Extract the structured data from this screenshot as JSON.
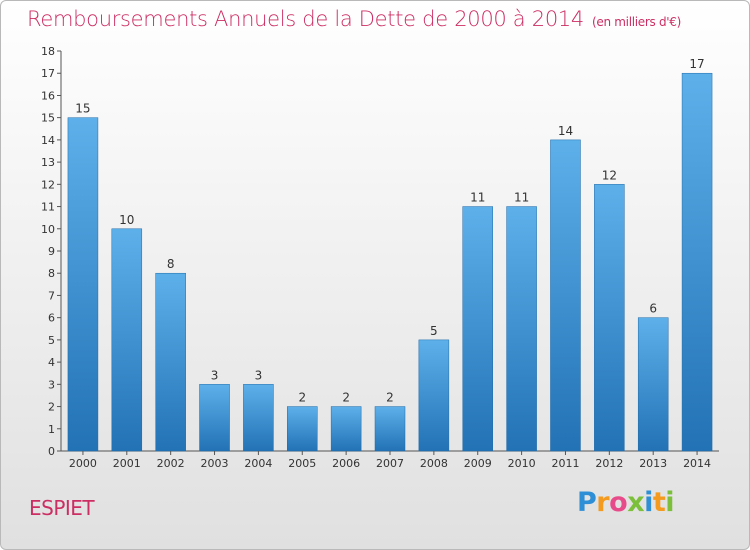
{
  "title": "Remboursements Annuels de la Dette de 2000 à 2014",
  "unit": "(en milliers d'€)",
  "commune": "ESPIET",
  "logo": {
    "letters": [
      "P",
      "r",
      "o",
      "x",
      "i",
      "t",
      "i"
    ],
    "colors": [
      "#2f8fd6",
      "#f39a1f",
      "#e84b8a",
      "#7bbf3a",
      "#2f8fd6",
      "#f39a1f",
      "#7bbf3a"
    ]
  },
  "colors": {
    "title": "#cc2e63",
    "bar_top": "#5db0ea",
    "bar_bottom": "#2272b5"
  },
  "chart_data": {
    "type": "bar",
    "categories": [
      "2000",
      "2001",
      "2002",
      "2003",
      "2004",
      "2005",
      "2006",
      "2007",
      "2008",
      "2009",
      "2010",
      "2011",
      "2012",
      "2013",
      "2014"
    ],
    "values": [
      15,
      10,
      8,
      3,
      3,
      2,
      2,
      2,
      5,
      11,
      11,
      14,
      12,
      6,
      17
    ],
    "ylim": [
      0,
      18
    ],
    "yticks": [
      0,
      1,
      2,
      3,
      4,
      5,
      6,
      7,
      8,
      9,
      10,
      11,
      12,
      13,
      14,
      15,
      16,
      17,
      18
    ],
    "grid": false,
    "data_labels": true
  }
}
